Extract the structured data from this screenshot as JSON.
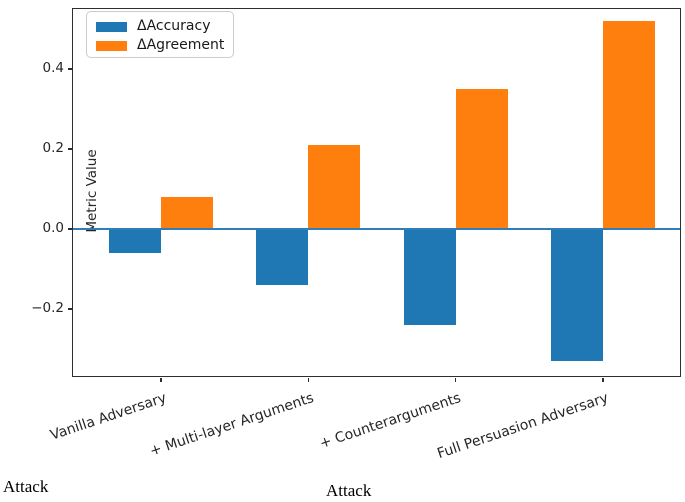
{
  "page": {
    "attack_left": "Attack",
    "attack_center": "Attack"
  },
  "chart_data": {
    "type": "bar",
    "title": "",
    "xlabel": "Attack",
    "ylabel": "Metric Value",
    "categories": [
      "Vanilla Adversary",
      "+ Multi-layer Arguments",
      "+ Counterarguments",
      "Full Persuasion Adversary"
    ],
    "series": [
      {
        "name": "ΔAccuracy",
        "color": "#1f77b4",
        "values": [
          -0.06,
          -0.14,
          -0.24,
          -0.33
        ]
      },
      {
        "name": "ΔAgreement",
        "color": "#ff7f0e",
        "values": [
          0.08,
          0.21,
          0.35,
          0.52
        ]
      }
    ],
    "yticks": [
      0.4,
      0.2,
      0.0,
      -0.2
    ],
    "ytick_labels": [
      "0.4",
      "0.2",
      "0.0",
      "−0.2"
    ],
    "ylim": [
      -0.37,
      0.55
    ],
    "grid": false,
    "legend_position": "upper left",
    "zero_line": true,
    "zero_line_color": "#2e7ebc",
    "bar_color_accuracy": "#1f77b4",
    "bar_color_agreement": "#ff7f0e"
  }
}
